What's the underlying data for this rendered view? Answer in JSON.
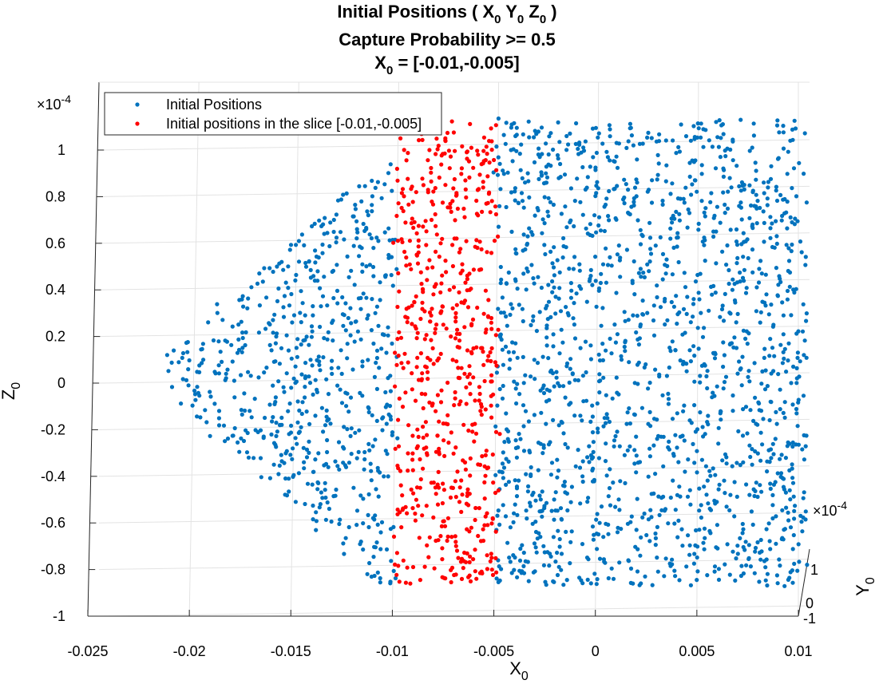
{
  "chart_data": {
    "type": "scatter",
    "title": {
      "line1_prefix": "Initial Positions ( X",
      "line1_sub1": "0",
      "line1_mid1": "  Y",
      "line1_sub2": "0",
      "line1_mid2": "  Z",
      "line1_sub3": "0",
      "line1_suffix": " )",
      "line2": "Capture Probability >= 0.5",
      "line3_prefix": "X",
      "line3_sub": "0",
      "line3_suffix": " = [-0.01,-0.005]"
    },
    "xlabel": {
      "main": "X",
      "sub": "0"
    },
    "ylabel": {
      "main": "Y",
      "sub": "0"
    },
    "zlabel": {
      "main": "Z",
      "sub": "0"
    },
    "z_exponent": {
      "base": "×10",
      "exp": "-4"
    },
    "y_exponent": {
      "base": "×10",
      "exp": "-4"
    },
    "xlim": [
      -0.025,
      0.01
    ],
    "zlim": [
      -1,
      1
    ],
    "ylim": [
      -1,
      1
    ],
    "x_ticks": [
      "-0.025",
      "-0.02",
      "-0.015",
      "-0.01",
      "-0.005",
      "0",
      "0.005",
      "0.01"
    ],
    "z_ticks": [
      "-1",
      "-0.8",
      "-0.6",
      "-0.4",
      "-0.2",
      "0",
      "0.2",
      "0.4",
      "0.6",
      "0.8",
      "1"
    ],
    "y_ticks": [
      "-1",
      "0",
      "1"
    ],
    "grid": true,
    "legend_position": "top-left",
    "series": [
      {
        "name": "Initial Positions",
        "color": "#0072BD",
        "region": {
          "x_min": -0.021,
          "x_max": 0.0105,
          "z_min": -0.86,
          "z_max": 1.14
        },
        "approx_points": 2200
      },
      {
        "name": "Initial positions in the slice [-0.01,-0.005]",
        "color": "#FF0000",
        "region": {
          "x_min": -0.0099,
          "x_max": -0.0049,
          "z_min": -0.86,
          "z_max": 1.14
        },
        "approx_points": 600
      }
    ]
  }
}
